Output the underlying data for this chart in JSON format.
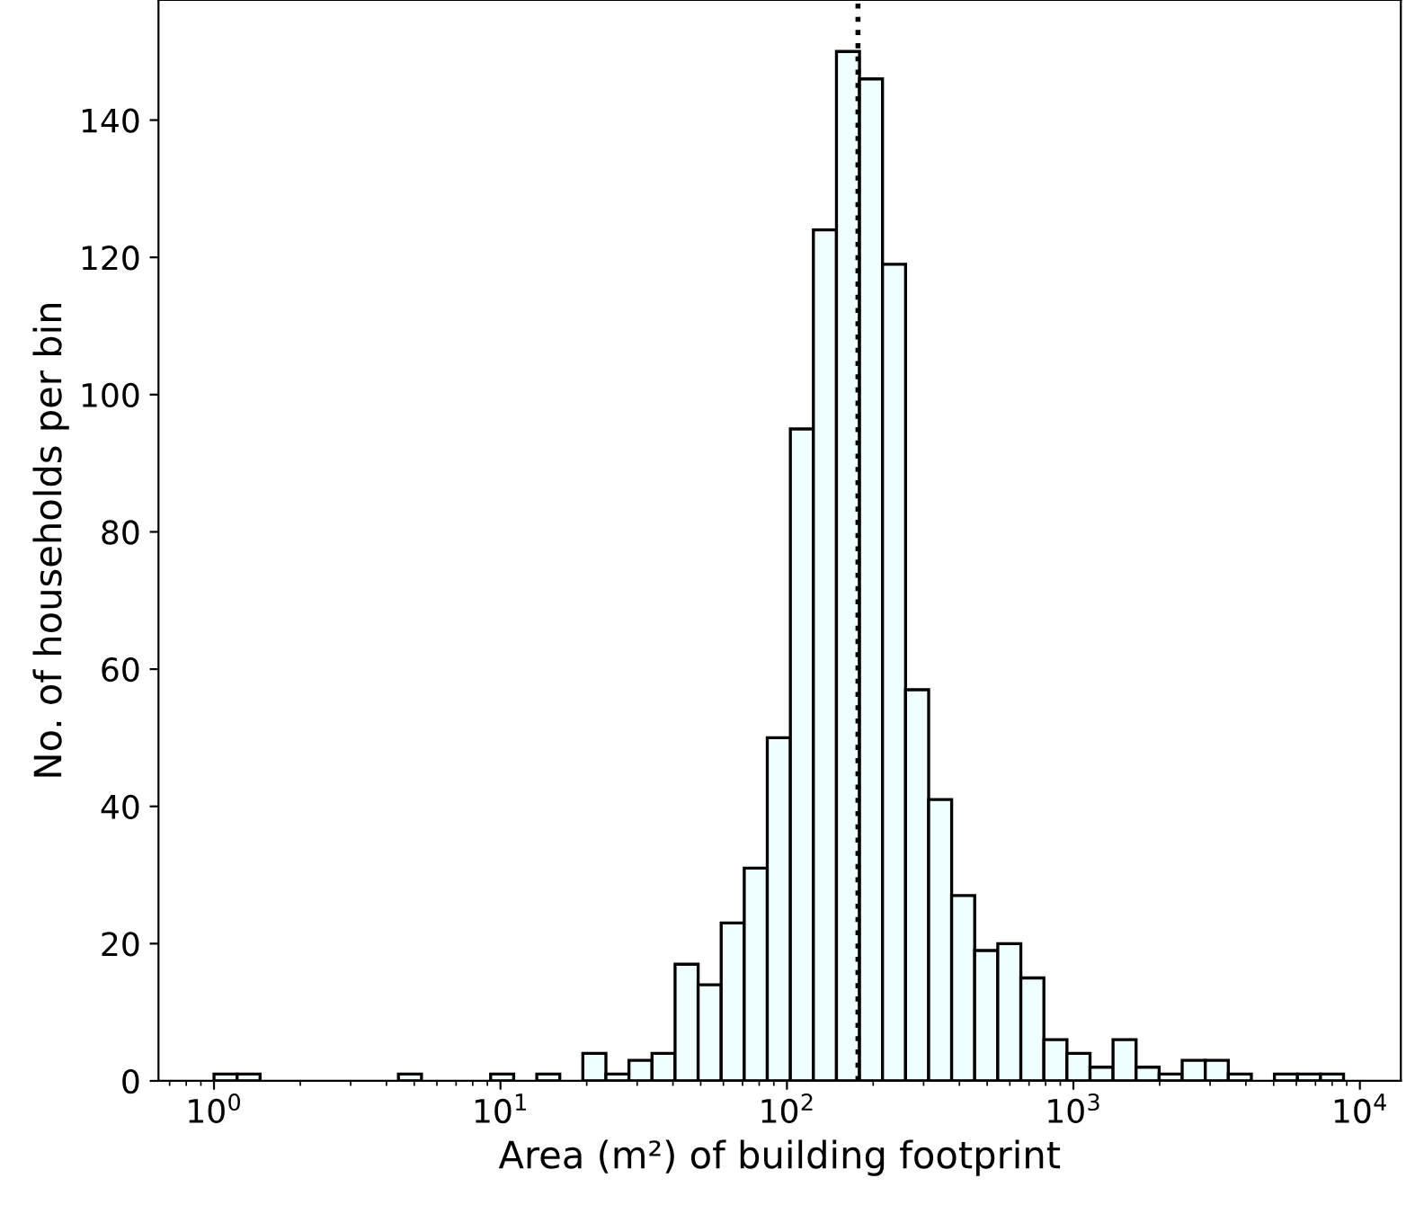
{
  "chart_data": {
    "type": "histogram",
    "xlabel": "Area (m²) of building footprint",
    "ylabel": "No. of households per bin",
    "log": "x",
    "bins": [
      1,
      1.204,
      1.448,
      1.743,
      2.098,
      2.526,
      3.04,
      3.659,
      4.404,
      5.3,
      6.379,
      7.678,
      9.24,
      11.12,
      13.39,
      16.11,
      19.39,
      23.34,
      28.09,
      33.81,
      40.69,
      48.98,
      58.95,
      70.95,
      85.39,
      102.8,
      123.7,
      148.9,
      179.2,
      215.6,
      259.5,
      312.4,
      375.8,
      452.3,
      544.5,
      655.4,
      788.8,
      949.3,
      1143,
      1375,
      1655,
      1992,
      2397,
      2886,
      3473,
      4180,
      5031,
      6055,
      7288,
      8770
    ],
    "values": [
      1,
      1,
      0,
      0,
      0,
      0,
      0,
      0,
      1,
      0,
      0,
      0,
      1,
      0,
      1,
      0,
      4,
      1,
      3,
      4,
      17,
      14,
      23,
      31,
      50,
      95,
      124,
      150,
      146,
      119,
      57,
      41,
      27,
      19,
      20,
      15,
      6,
      4,
      2,
      6,
      2,
      1,
      3,
      3,
      1,
      0,
      1,
      1,
      1
    ],
    "color": "#f0ffff",
    "xlim": [
      0.64,
      13900
    ],
    "ylim": [
      0,
      157.5
    ],
    "xticks": [
      {
        "value": 1,
        "label": "10$^{0}$"
      },
      {
        "value": 10,
        "label": "10$^{1}$"
      },
      {
        "value": 100,
        "label": "10$^{2}$"
      },
      {
        "value": 1000,
        "label": "10$^{3}$"
      },
      {
        "value": 10000,
        "label": "10$^{4}$"
      }
    ],
    "yticks": [
      0,
      20,
      40,
      60,
      80,
      100,
      120,
      140
    ],
    "ref_lines": [
      {
        "axis": "x",
        "value": 177,
        "color": "#000000",
        "line_style": "dotted"
      }
    ],
    "grid": false,
    "legend": false
  }
}
